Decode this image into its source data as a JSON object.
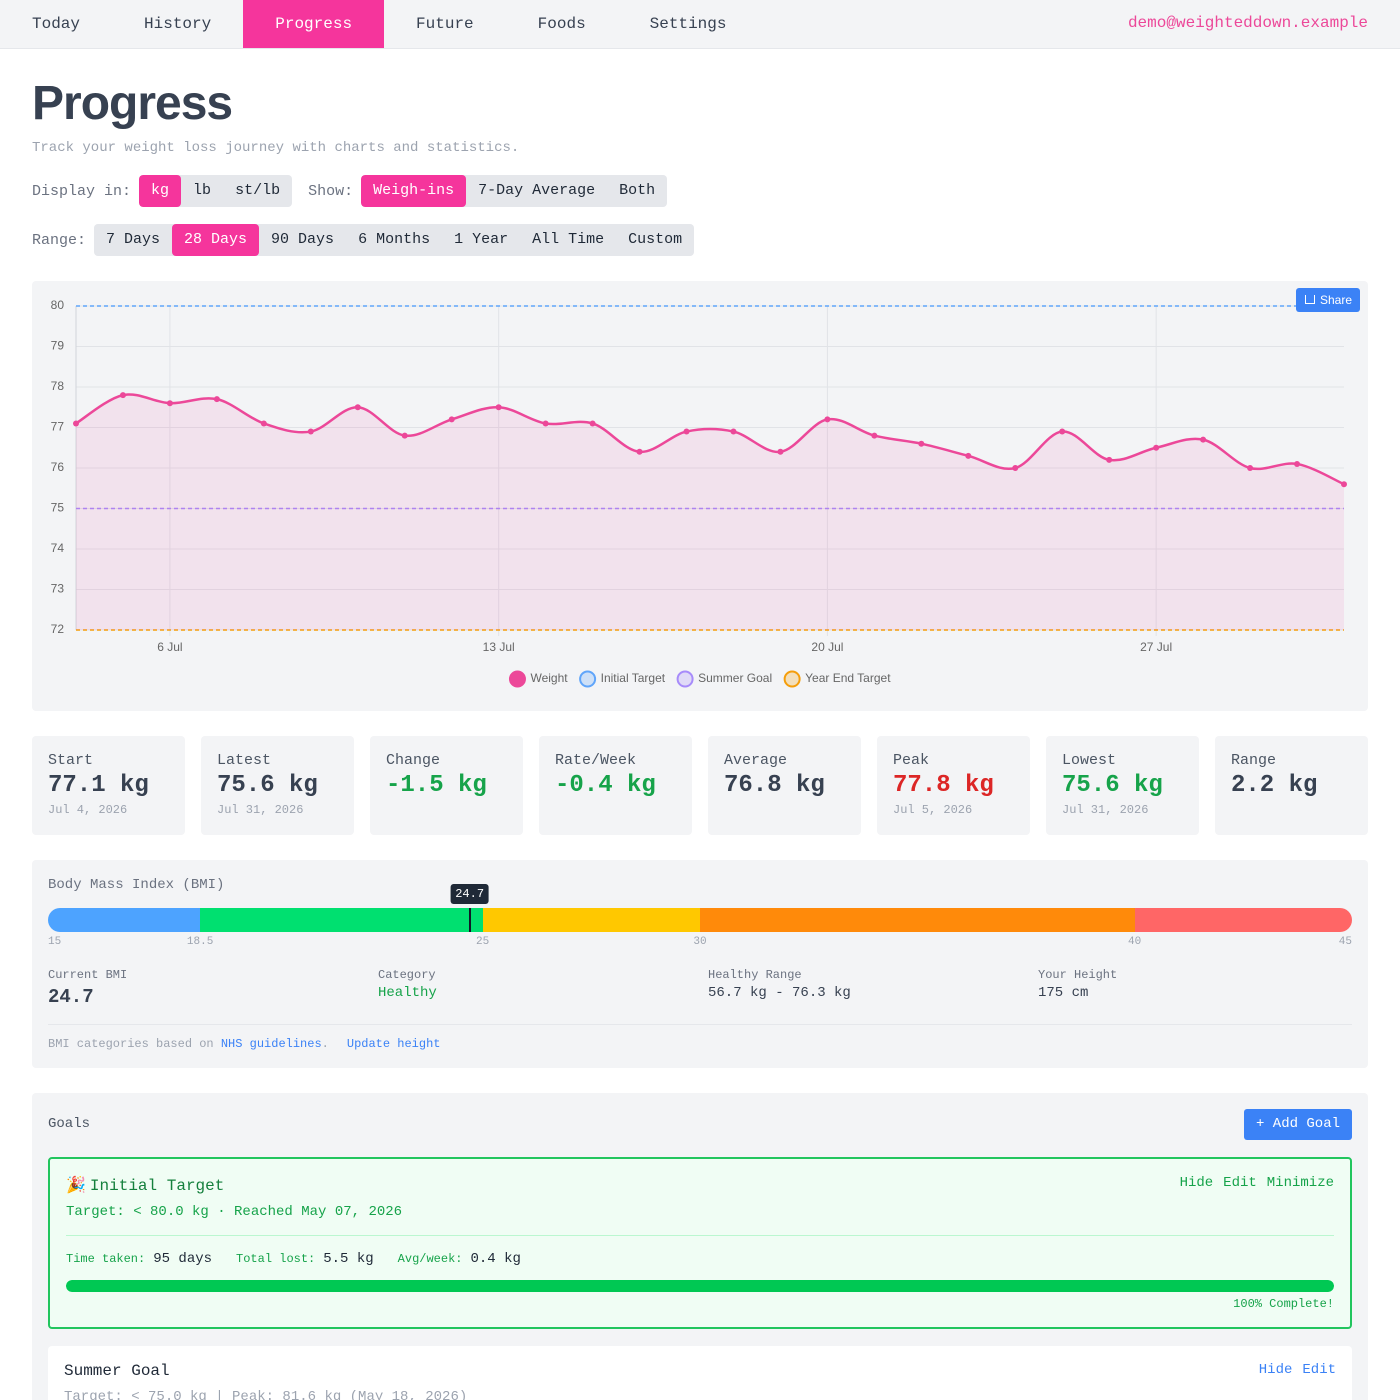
{
  "nav": {
    "items": [
      "Today",
      "History",
      "Progress",
      "Future",
      "Foods",
      "Settings"
    ],
    "active": 2,
    "user": "demo@weighteddown.example"
  },
  "header": {
    "title": "Progress",
    "subtitle": "Track your weight loss journey with charts and statistics."
  },
  "controls": {
    "display": {
      "label": "Display in:",
      "options": [
        "kg",
        "lb",
        "st/lb"
      ],
      "active": 0
    },
    "show": {
      "label": "Show:",
      "options": [
        "Weigh-ins",
        "7-Day Average",
        "Both"
      ],
      "active": 0
    },
    "range": {
      "label": "Range:",
      "options": [
        "7 Days",
        "28 Days",
        "90 Days",
        "6 Months",
        "1 Year",
        "All Time",
        "Custom"
      ],
      "active": 1
    }
  },
  "chart_data": {
    "type": "line",
    "share_button": "Share",
    "x": [
      "4 Jul",
      "5 Jul",
      "6 Jul",
      "7 Jul",
      "8 Jul",
      "9 Jul",
      "10 Jul",
      "11 Jul",
      "12 Jul",
      "13 Jul",
      "14 Jul",
      "15 Jul",
      "16 Jul",
      "17 Jul",
      "18 Jul",
      "19 Jul",
      "20 Jul",
      "21 Jul",
      "22 Jul",
      "23 Jul",
      "24 Jul",
      "25 Jul",
      "26 Jul",
      "27 Jul",
      "28 Jul",
      "29 Jul",
      "30 Jul",
      "31 Jul"
    ],
    "series": [
      {
        "name": "Weight",
        "color": "#ec4899",
        "values": [
          77.1,
          77.8,
          77.6,
          77.7,
          77.1,
          76.9,
          77.5,
          76.8,
          77.2,
          77.5,
          77.1,
          77.1,
          76.4,
          76.9,
          76.9,
          76.4,
          77.2,
          76.8,
          76.6,
          76.3,
          76.0,
          76.9,
          76.2,
          76.5,
          76.7,
          76.0,
          76.1,
          75.6
        ]
      }
    ],
    "reference_lines": [
      {
        "name": "Initial Target",
        "color": "#60a5fa",
        "value": 80
      },
      {
        "name": "Summer Goal",
        "color": "#a78bfa",
        "value": 75
      },
      {
        "name": "Year End Target",
        "color": "#f59e0b",
        "value": 72
      }
    ],
    "ylim": [
      72,
      80
    ],
    "yticks": [
      72,
      73,
      74,
      75,
      76,
      77,
      78,
      79,
      80
    ],
    "xticks": [
      "6 Jul",
      "13 Jul",
      "20 Jul",
      "27 Jul"
    ],
    "grid": true
  },
  "stats": [
    {
      "label": "Start",
      "value": "77.1 kg",
      "date": "Jul 4, 2026"
    },
    {
      "label": "Latest",
      "value": "75.6 kg",
      "date": "Jul 31, 2026"
    },
    {
      "label": "Change",
      "value": "-1.5 kg",
      "color": "#16a34a"
    },
    {
      "label": "Rate/Week",
      "value": "-0.4 kg",
      "color": "#16a34a"
    },
    {
      "label": "Average",
      "value": "76.8 kg"
    },
    {
      "label": "Peak",
      "value": "77.8 kg",
      "date": "Jul 5, 2026",
      "color": "#dc2626"
    },
    {
      "label": "Lowest",
      "value": "75.6 kg",
      "date": "Jul 31, 2026",
      "color": "#16a34a"
    },
    {
      "label": "Range",
      "value": "2.2 kg"
    }
  ],
  "bmi": {
    "title": "Body Mass Index (BMI)",
    "scale": [
      15,
      18.5,
      25,
      30,
      40,
      45
    ],
    "segment_colors": [
      "#4da3ff",
      "#00e070",
      "#ffc800",
      "#ff8a0a",
      "#ff6666"
    ],
    "current": 24.7,
    "info": [
      {
        "label": "Current BMI"
      },
      {
        "label": "Category",
        "value": "Healthy"
      },
      {
        "label": "Healthy Range",
        "value": "56.7 kg - 76.3 kg"
      },
      {
        "label": "Your Height",
        "value": "175 cm"
      }
    ],
    "footer": {
      "text": "BMI categories based on",
      "link": "NHS guidelines",
      "end": ".",
      "action": "Update height"
    }
  },
  "goals": {
    "title": "Goals",
    "add_button": "+ Add Goal",
    "items": [
      {
        "icon": "🎉",
        "name": "Initial Target",
        "actions": [
          "Hide",
          "Edit",
          "Minimize"
        ],
        "detail": "Target: < 80.0 kg · Reached May 07, 2026",
        "stats": [
          {
            "label": "Time taken:",
            "value": "95 days"
          },
          {
            "label": "Total lost:",
            "value": "5.5 kg"
          },
          {
            "label": "Avg/week:",
            "value": "0.4 kg"
          }
        ],
        "progress": 100,
        "progress_label": "100% Complete!"
      },
      {
        "name": "Summer Goal",
        "actions": [
          "Hide",
          "Edit"
        ],
        "detail": "Target: < 75.0 kg | Peak: 81.6 kg (May 18, 2026)"
      }
    ]
  }
}
